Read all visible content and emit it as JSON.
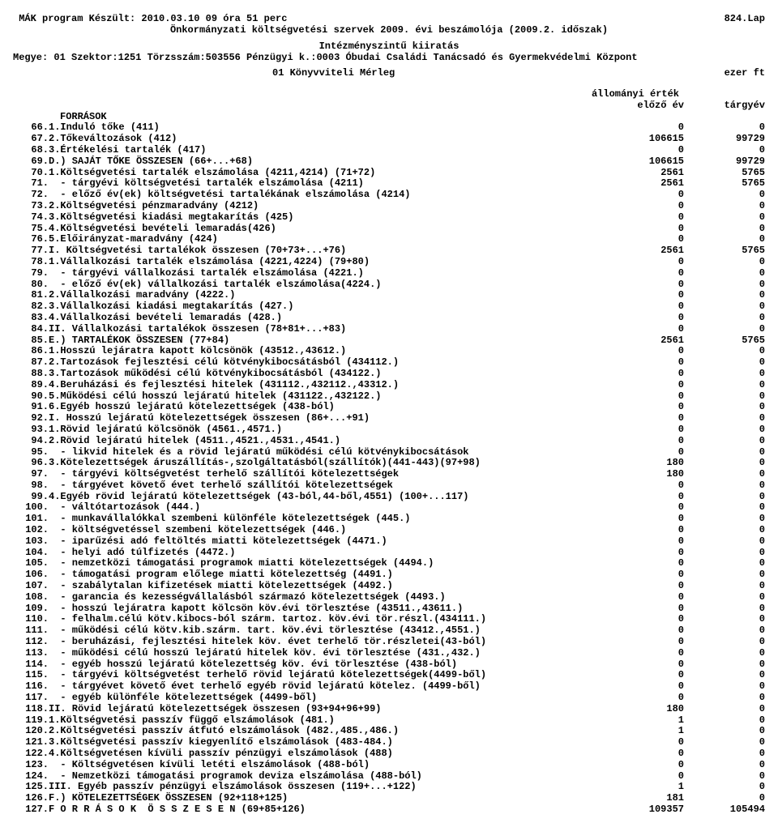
{
  "header": {
    "leftTop": " MÁK program Készült: 2010.03.10  09 óra 51 perc",
    "rightTop": "824.Lap",
    "title2": "Önkormányzati költségvetési szervek 2009. évi beszámolója (2009.2. időszak)",
    "title3": "Intézményszintű kiiratás",
    "line4left": "Megye: 01  Szektor:1251  Törzsszám:503556 Pénzügyi k.:0003 Óbudai Családi Tanácsadó és Gyermekvédelmi Központ",
    "line5left": "01  Könyvviteli Mérleg",
    "line5right": "ezer ft",
    "colTitle": "állományi érték",
    "colPrev": "előző év",
    "colCurr": "tárgyév",
    "sourcesLabel": "FORRÁSOK"
  },
  "rows": [
    {
      "n": "66.",
      "d": "1.Induló tőke (411)",
      "a": "0",
      "b": "0"
    },
    {
      "n": "67.",
      "d": "2.Tőkeváltozások (412)",
      "a": "106615",
      "b": "99729"
    },
    {
      "n": "68.",
      "d": "3.Értékelési tartalék (417)",
      "a": "0",
      "b": "0"
    },
    {
      "n": "69.",
      "d": "D.) SAJÁT TŐKE ÖSSZESEN (66+...+68)",
      "a": "106615",
      "b": "99729"
    },
    {
      "n": "70.",
      "d": "1.Költségvetési tartalék elszámolása (4211,4214) (71+72)",
      "a": "2561",
      "b": "5765"
    },
    {
      "n": "71.",
      "d": "  - tárgyévi költségvetési tartalék elszámolása (4211)",
      "a": "2561",
      "b": "5765"
    },
    {
      "n": "72.",
      "d": "  - előző év(ek) költségvetési tartalékának elszámolása (4214)",
      "a": "0",
      "b": "0"
    },
    {
      "n": "73.",
      "d": "2.Költségvetési pénzmaradvány (4212)",
      "a": "0",
      "b": "0"
    },
    {
      "n": "74.",
      "d": "3.Költségvetési kiadási megtakarítás (425)",
      "a": "0",
      "b": "0"
    },
    {
      "n": "75.",
      "d": "4.Költségvetési bevételi lemaradás(426)",
      "a": "0",
      "b": "0"
    },
    {
      "n": "76.",
      "d": "5.Előirányzat-maradvány (424)",
      "a": "0",
      "b": "0"
    },
    {
      "n": "77.",
      "d": "I. Költségvetési tartalékok összesen (70+73+...+76)",
      "a": "2561",
      "b": "5765"
    },
    {
      "n": "78.",
      "d": "1.Vállalkozási tartalék elszámolása (4221,4224) (79+80)",
      "a": "0",
      "b": "0"
    },
    {
      "n": "79.",
      "d": "  - tárgyévi vállalkozási tartalék elszámolása (4221.)",
      "a": "0",
      "b": "0"
    },
    {
      "n": "80.",
      "d": "  - előző év(ek) vállalkozási tartalék elszámolása(4224.)",
      "a": "0",
      "b": "0"
    },
    {
      "n": "81.",
      "d": "2.Vállalkozási maradvány (4222.)",
      "a": "0",
      "b": "0"
    },
    {
      "n": "82.",
      "d": "3.Vállalkozási kiadási megtakarítás (427.)",
      "a": "0",
      "b": "0"
    },
    {
      "n": "83.",
      "d": "4.Vállalkozási bevételi lemaradás (428.)",
      "a": "0",
      "b": "0"
    },
    {
      "n": "84.",
      "d": "II. Vállalkozási tartalékok összesen (78+81+...+83)",
      "a": "0",
      "b": "0"
    },
    {
      "n": "85.",
      "d": "E.) TARTALÉKOK ÖSSZESEN (77+84)",
      "a": "2561",
      "b": "5765"
    },
    {
      "n": "86.",
      "d": "1.Hosszú lejáratra kapott kölcsönök (43512.,43612.)",
      "a": "0",
      "b": "0"
    },
    {
      "n": "87.",
      "d": "2.Tartozások fejlesztési célú kötvénykibocsátásból (434112.)",
      "a": "0",
      "b": "0"
    },
    {
      "n": "88.",
      "d": "3.Tartozások működési célú kötvénykibocsátásból (434122.)",
      "a": "0",
      "b": "0"
    },
    {
      "n": "89.",
      "d": "4.Beruházási és fejlesztési hitelek (431112.,432112.,43312.)",
      "a": "0",
      "b": "0"
    },
    {
      "n": "90.",
      "d": "5.Működési célú hosszú lejáratú hitelek (431122.,432122.)",
      "a": "0",
      "b": "0"
    },
    {
      "n": "91.",
      "d": "6.Egyéb hosszú lejáratú kötelezettségek (438-ból)",
      "a": "0",
      "b": "0"
    },
    {
      "n": "92.",
      "d": "I. Hosszú lejáratú kötelezettségek összesen (86+...+91)",
      "a": "0",
      "b": "0"
    },
    {
      "n": "93.",
      "d": "1.Rövid lejáratú kölcsönök (4561.,4571.)",
      "a": "0",
      "b": "0"
    },
    {
      "n": "94.",
      "d": "2.Rövid lejáratú hitelek (4511.,4521.,4531.,4541.)",
      "a": "0",
      "b": "0"
    },
    {
      "n": "95.",
      "d": "  - likvid hitelek és a rövid lejáratú működési célú kötvénykibocsátások",
      "a": "0",
      "b": "0"
    },
    {
      "n": "96.",
      "d": "3.Kötelezettségek áruszállítás-,szolgáltatásból(szállítók)(441-443)(97+98)",
      "a": "180",
      "b": "0"
    },
    {
      "n": "97.",
      "d": "  - tárgyévi költségvetést terhelő szállítói kötelezettségek",
      "a": "180",
      "b": "0"
    },
    {
      "n": "98.",
      "d": "  - tárgyévet követő évet terhelő szállítói kötelezettségek",
      "a": "0",
      "b": "0"
    },
    {
      "n": "99.",
      "d": "4.Egyéb rövid lejáratú kötelezettségek (43-ból,44-ből,4551) (100+...117)",
      "a": "0",
      "b": "0"
    },
    {
      "n": "100.",
      "d": "  - váltótartozások (444.)",
      "a": "0",
      "b": "0"
    },
    {
      "n": "101.",
      "d": "  - munkavállalókkal szembeni különféle kötelezettségek (445.)",
      "a": "0",
      "b": "0"
    },
    {
      "n": "102.",
      "d": "  - költségvetéssel szembeni kötelezettségek (446.)",
      "a": "0",
      "b": "0"
    },
    {
      "n": "103.",
      "d": "  - iparűzési adó feltöltés miatti kötelezettségek (4471.)",
      "a": "0",
      "b": "0"
    },
    {
      "n": "104.",
      "d": "  - helyi adó túlfizetés (4472.)",
      "a": "0",
      "b": "0"
    },
    {
      "n": "105.",
      "d": "  - nemzetközi támogatási programok miatti kötelezettségek (4494.)",
      "a": "0",
      "b": "0"
    },
    {
      "n": "106.",
      "d": "  - támogatási program előlege miatti kötelezettség (4491.)",
      "a": "0",
      "b": "0"
    },
    {
      "n": "107.",
      "d": "  - szabálytalan kifizetések miatti kötelezettségek (4492.)",
      "a": "0",
      "b": "0"
    },
    {
      "n": "108.",
      "d": "  - garancia és kezességvállalásból származó kötelezettségek (4493.)",
      "a": "0",
      "b": "0"
    },
    {
      "n": "109.",
      "d": "  - hosszú lejáratra kapott kölcsön köv.évi törlesztése (43511.,43611.)",
      "a": "0",
      "b": "0"
    },
    {
      "n": "110.",
      "d": "  - felhalm.célú kötv.kibocs-ból szárm. tartoz. köv.évi tör.részl.(434111.)",
      "a": "0",
      "b": "0"
    },
    {
      "n": "111.",
      "d": "  - működési célú kötv.kib.szárm. tart. köv.évi törlesztése (43412.,4551.)",
      "a": "0",
      "b": "0"
    },
    {
      "n": "112.",
      "d": "  - beruházási, fejlesztési hitelek köv. évet terhelő tör.részletei(43-ból)",
      "a": "0",
      "b": "0"
    },
    {
      "n": "113.",
      "d": "  - működési célú hosszú lejáratú hitelek köv. évi törlesztése (431.,432.)",
      "a": "0",
      "b": "0"
    },
    {
      "n": "114.",
      "d": "  - egyéb hosszú lejáratú kötelezettség köv. évi törlesztése (438-ból)",
      "a": "0",
      "b": "0"
    },
    {
      "n": "115.",
      "d": "  - tárgyévi költségvetést terhelő rövid lejáratú kötelezettségek(4499-ből)",
      "a": "0",
      "b": "0"
    },
    {
      "n": "116.",
      "d": "  - tárgyévet követő évet terhelő egyéb rövid lejáratú kötelez. (4499-ből)",
      "a": "0",
      "b": "0"
    },
    {
      "n": "117.",
      "d": "  - egyéb különféle kötelezettségek (4499-ből)",
      "a": "0",
      "b": "0"
    },
    {
      "n": "118.",
      "d": "II. Rövid lejáratú kötelezettségek összesen (93+94+96+99)",
      "a": "180",
      "b": "0"
    },
    {
      "n": "119.",
      "d": "1.Költségvetési passzív függő elszámolások (481.)",
      "a": "1",
      "b": "0"
    },
    {
      "n": "120.",
      "d": "2.Költségvetési passzív átfutó elszámolások (482.,485.,486.)",
      "a": "1",
      "b": "0"
    },
    {
      "n": "121.",
      "d": "3.Költségvetési passzív kiegyenlítő elszámolások (483-484.)",
      "a": "0",
      "b": "0"
    },
    {
      "n": "122.",
      "d": "4.Költségvetésen kívüli passzív pénzügyi elszámolások (488)",
      "a": "0",
      "b": "0"
    },
    {
      "n": "123.",
      "d": "  - Költségvetésen kívüli letéti elszámolások (488-ból)",
      "a": "0",
      "b": "0"
    },
    {
      "n": "124.",
      "d": "  - Nemzetközi támogatási programok deviza elszámolása (488-ból)",
      "a": "0",
      "b": "0"
    },
    {
      "n": "125.",
      "d": "III. Egyéb passzív pénzügyi elszámolások összesen (119+...+122)",
      "a": "1",
      "b": "0"
    },
    {
      "n": "126.",
      "d": "F.) KÖTELEZETTSÉGEK ÖSSZESEN (92+118+125)",
      "a": "181",
      "b": "0"
    },
    {
      "n": "127.",
      "d": "F O R R Á S O K  Ö S S Z E S E N (69+85+126)",
      "a": "109357",
      "b": "105494"
    }
  ]
}
